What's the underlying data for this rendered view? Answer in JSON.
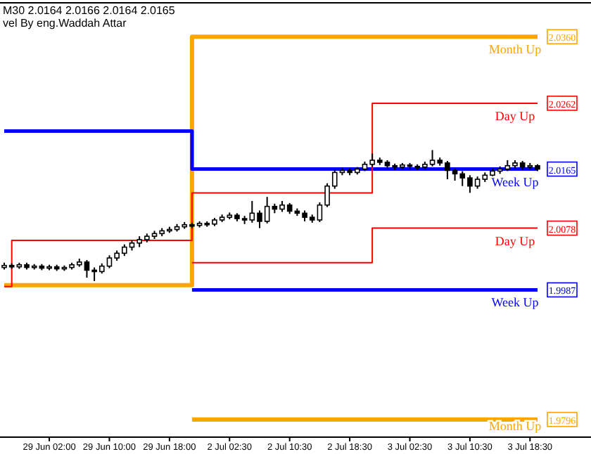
{
  "chart_data": {
    "type": "candlestick",
    "title": "M30  2.0164 2.0166 2.0164 2.0165",
    "subtitle": "vel By eng.Waddah Attar",
    "categories": [
      null,
      null,
      null,
      null,
      null,
      null,
      "29 Jun 02:00",
      null,
      null,
      null,
      null,
      null,
      null,
      null,
      "29 Jun 10:00",
      null,
      null,
      null,
      null,
      null,
      null,
      null,
      "29 Jun 18:00",
      null,
      null,
      null,
      null,
      null,
      null,
      null,
      "2 Jul 02:30",
      null,
      null,
      null,
      null,
      null,
      null,
      null,
      "2 Jul 10:30",
      null,
      null,
      null,
      null,
      null,
      null,
      null,
      "2 Jul 18:30",
      null,
      null,
      null,
      null,
      null,
      null,
      null,
      "3 Jul 02:30",
      null,
      null,
      null,
      null,
      null,
      null,
      null,
      "3 Jul 10:30",
      null,
      null,
      null,
      null,
      null,
      null,
      null,
      "3 Jul 18:30",
      null
    ],
    "ylim": [
      1.977,
      2.041
    ],
    "yticks": [
      {
        "value": 2.036,
        "label": "2.0360"
      },
      {
        "value": 2.0262,
        "label": "2.0262"
      },
      {
        "value": 2.0165,
        "label": "2.0165"
      },
      {
        "value": 2.0078,
        "label": "2.0078"
      },
      {
        "value": 1.9987,
        "label": "1.9987"
      },
      {
        "value": 1.9796,
        "label": "1.9796"
      }
    ],
    "ohlc": [
      [
        2.002,
        2.0027,
        2.0017,
        2.0023
      ],
      [
        2.0023,
        2.0026,
        2.0018,
        2.0021
      ],
      [
        2.0021,
        2.0027,
        2.0018,
        2.0024
      ],
      [
        2.0024,
        2.0027,
        2.0017,
        2.002
      ],
      [
        2.002,
        2.0025,
        2.0017,
        2.0022
      ],
      [
        2.0022,
        2.0025,
        2.0016,
        2.0019
      ],
      [
        2.0019,
        2.0024,
        2.0016,
        2.0021
      ],
      [
        2.0021,
        2.0024,
        2.0015,
        2.0018
      ],
      [
        2.0018,
        2.0023,
        2.0015,
        2.002
      ],
      [
        2.002,
        2.0027,
        2.0017,
        2.0024
      ],
      [
        2.0024,
        2.0033,
        2.0021,
        2.0028
      ],
      [
        2.0028,
        2.0031,
        2.0005,
        2.0016
      ],
      [
        2.0016,
        2.002,
        2.0,
        2.0014
      ],
      [
        2.0014,
        2.0026,
        2.0011,
        2.0022
      ],
      [
        2.0022,
        2.0038,
        2.0019,
        2.0034
      ],
      [
        2.0034,
        2.0045,
        2.003,
        2.0041
      ],
      [
        2.0041,
        2.0054,
        2.0037,
        2.005
      ],
      [
        2.005,
        2.006,
        2.0045,
        2.0056
      ],
      [
        2.0056,
        2.0066,
        2.005,
        2.0061
      ],
      [
        2.0061,
        2.007,
        2.0057,
        2.0066
      ],
      [
        2.0066,
        2.0074,
        2.0062,
        2.007
      ],
      [
        2.007,
        2.0078,
        2.0066,
        2.0074
      ],
      [
        2.0074,
        2.008,
        2.0071,
        2.0076
      ],
      [
        2.0076,
        2.0084,
        2.0073,
        2.008
      ],
      [
        2.008,
        2.0087,
        2.0077,
        2.0083
      ],
      [
        2.0083,
        2.0086,
        2.0078,
        2.0082
      ],
      [
        2.0082,
        2.0088,
        2.0079,
        2.0085
      ],
      [
        2.0085,
        2.0088,
        2.008,
        2.0084
      ],
      [
        2.0084,
        2.0093,
        2.0081,
        2.009
      ],
      [
        2.009,
        2.0098,
        2.0087,
        2.0094
      ],
      [
        2.0094,
        2.0101,
        2.0091,
        2.0097
      ],
      [
        2.0097,
        2.01,
        2.0088,
        2.0092
      ],
      [
        2.0092,
        2.0096,
        2.0084,
        2.009
      ],
      [
        2.009,
        2.0118,
        2.0086,
        2.01
      ],
      [
        2.01,
        2.0104,
        2.0078,
        2.0088
      ],
      [
        2.0088,
        2.0124,
        2.0085,
        2.011
      ],
      [
        2.011,
        2.0114,
        2.01,
        2.0106
      ],
      [
        2.0106,
        2.0118,
        2.0102,
        2.0112
      ],
      [
        2.0112,
        2.0115,
        2.0099,
        2.0103
      ],
      [
        2.0103,
        2.0107,
        2.0096,
        2.01
      ],
      [
        2.01,
        2.0104,
        2.0088,
        2.0094
      ],
      [
        2.0094,
        2.0098,
        2.0086,
        2.009
      ],
      [
        2.009,
        2.0116,
        2.0087,
        2.0112
      ],
      [
        2.0112,
        2.0144,
        2.0109,
        2.014
      ],
      [
        2.014,
        2.0164,
        2.0136,
        2.016
      ],
      [
        2.016,
        2.0167,
        2.0156,
        2.0163
      ],
      [
        2.0163,
        2.0166,
        2.0156,
        2.016
      ],
      [
        2.016,
        2.0168,
        2.0157,
        2.0165
      ],
      [
        2.0165,
        2.0176,
        2.0162,
        2.0172
      ],
      [
        2.0172,
        2.0188,
        2.0168,
        2.0178
      ],
      [
        2.0178,
        2.0182,
        2.0171,
        2.0175
      ],
      [
        2.0175,
        2.0178,
        2.0166,
        2.017
      ],
      [
        2.017,
        2.0173,
        2.0164,
        2.0168
      ],
      [
        2.0168,
        2.0174,
        2.0165,
        2.0171
      ],
      [
        2.0171,
        2.0174,
        2.0165,
        2.0169
      ],
      [
        2.0169,
        2.0172,
        2.0164,
        2.0168
      ],
      [
        2.0168,
        2.0176,
        2.0165,
        2.0172
      ],
      [
        2.0172,
        2.0193,
        2.0169,
        2.0178
      ],
      [
        2.0178,
        2.0182,
        2.017,
        2.0174
      ],
      [
        2.0174,
        2.0177,
        2.015,
        2.0163
      ],
      [
        2.0163,
        2.0166,
        2.0148,
        2.0158
      ],
      [
        2.0158,
        2.0162,
        2.014,
        2.0152
      ],
      [
        2.0152,
        2.0156,
        2.013,
        2.014
      ],
      [
        2.014,
        2.0154,
        2.0136,
        2.015
      ],
      [
        2.015,
        2.016,
        2.0146,
        2.0156
      ],
      [
        2.0156,
        2.0166,
        2.0152,
        2.0162
      ],
      [
        2.0162,
        2.0169,
        2.0158,
        2.0165
      ],
      [
        2.0165,
        2.0178,
        2.0162,
        2.017
      ],
      [
        2.017,
        2.0178,
        2.0166,
        2.0174
      ],
      [
        2.0174,
        2.0177,
        2.0164,
        2.0168
      ],
      [
        2.0168,
        2.0174,
        2.0165,
        2.017
      ],
      [
        2.017,
        2.0172,
        2.0162,
        2.0165
      ]
    ],
    "series": [
      {
        "type": "step",
        "name": "Month Up",
        "color": "#ffa500",
        "values": [
          1.9994,
          1.9994,
          1.9994,
          1.9994,
          1.9994,
          1.9994,
          1.9994,
          1.9994,
          1.9994,
          1.9994,
          1.9994,
          1.9994,
          1.9994,
          1.9994,
          1.9994,
          1.9994,
          1.9994,
          1.9994,
          1.9994,
          1.9994,
          1.9994,
          1.9994,
          1.9994,
          1.9994,
          1.9994,
          2.036,
          2.036,
          2.036,
          2.036,
          2.036,
          2.036,
          2.036,
          2.036,
          2.036,
          2.036,
          2.036,
          2.036,
          2.036,
          2.036,
          2.036,
          2.036,
          2.036,
          2.036,
          2.036,
          2.036,
          2.036,
          2.036,
          2.036,
          2.036,
          2.036,
          2.036,
          2.036,
          2.036,
          2.036,
          2.036,
          2.036,
          2.036,
          2.036,
          2.036,
          2.036,
          2.036,
          2.036,
          2.036,
          2.036,
          2.036,
          2.036,
          2.036,
          2.036,
          2.036,
          2.036,
          2.036,
          2.036
        ]
      },
      {
        "type": "step",
        "name": "Month Up",
        "color": "#ffa500",
        "values": [
          null,
          null,
          null,
          null,
          null,
          null,
          null,
          null,
          null,
          null,
          null,
          null,
          null,
          null,
          null,
          null,
          null,
          null,
          null,
          null,
          null,
          null,
          null,
          null,
          null,
          1.9796,
          1.9796,
          1.9796,
          1.9796,
          1.9796,
          1.9796,
          1.9796,
          1.9796,
          1.9796,
          1.9796,
          1.9796,
          1.9796,
          1.9796,
          1.9796,
          1.9796,
          1.9796,
          1.9796,
          1.9796,
          1.9796,
          1.9796,
          1.9796,
          1.9796,
          1.9796,
          1.9796,
          1.9796,
          1.9796,
          1.9796,
          1.9796,
          1.9796,
          1.9796,
          1.9796,
          1.9796,
          1.9796,
          1.9796,
          1.9796,
          1.9796,
          1.9796,
          1.9796,
          1.9796,
          1.9796,
          1.9796,
          1.9796,
          1.9796,
          1.9796,
          1.9796,
          1.9796,
          1.9796
        ]
      },
      {
        "type": "step",
        "name": "Week Up",
        "color": "#0000ff",
        "values": [
          2.0221,
          2.0221,
          2.0221,
          2.0221,
          2.0221,
          2.0221,
          2.0221,
          2.0221,
          2.0221,
          2.0221,
          2.0221,
          2.0221,
          2.0221,
          2.0221,
          2.0221,
          2.0221,
          2.0221,
          2.0221,
          2.0221,
          2.0221,
          2.0221,
          2.0221,
          2.0221,
          2.0221,
          2.0221,
          2.0165,
          2.0165,
          2.0165,
          2.0165,
          2.0165,
          2.0165,
          2.0165,
          2.0165,
          2.0165,
          2.0165,
          2.0165,
          2.0165,
          2.0165,
          2.0165,
          2.0165,
          2.0165,
          2.0165,
          2.0165,
          2.0165,
          2.0165,
          2.0165,
          2.0165,
          2.0165,
          2.0165,
          2.0165,
          2.0165,
          2.0165,
          2.0165,
          2.0165,
          2.0165,
          2.0165,
          2.0165,
          2.0165,
          2.0165,
          2.0165,
          2.0165,
          2.0165,
          2.0165,
          2.0165,
          2.0165,
          2.0165,
          2.0165,
          2.0165,
          2.0165,
          2.0165,
          2.0165,
          2.0165
        ]
      },
      {
        "type": "step",
        "name": "Week Up",
        "color": "#0000ff",
        "values": [
          null,
          null,
          null,
          null,
          null,
          null,
          null,
          null,
          null,
          null,
          null,
          null,
          null,
          null,
          null,
          null,
          null,
          null,
          null,
          null,
          null,
          null,
          null,
          null,
          null,
          1.9987,
          1.9987,
          1.9987,
          1.9987,
          1.9987,
          1.9987,
          1.9987,
          1.9987,
          1.9987,
          1.9987,
          1.9987,
          1.9987,
          1.9987,
          1.9987,
          1.9987,
          1.9987,
          1.9987,
          1.9987,
          1.9987,
          1.9987,
          1.9987,
          1.9987,
          1.9987,
          1.9987,
          1.9987,
          1.9987,
          1.9987,
          1.9987,
          1.9987,
          1.9987,
          1.9987,
          1.9987,
          1.9987,
          1.9987,
          1.9987,
          1.9987,
          1.9987,
          1.9987,
          1.9987,
          1.9987,
          1.9987,
          1.9987,
          1.9987,
          1.9987,
          1.9987,
          1.9987,
          1.9987
        ]
      },
      {
        "type": "step",
        "name": "Day Up",
        "color": "#ff0000",
        "values": [
          1.9992,
          2.006,
          2.006,
          2.006,
          2.006,
          2.006,
          2.006,
          2.006,
          2.006,
          2.006,
          2.006,
          2.006,
          2.006,
          2.006,
          2.006,
          2.006,
          2.006,
          2.006,
          2.006,
          2.006,
          2.006,
          2.006,
          2.006,
          2.006,
          2.006,
          2.013,
          2.013,
          2.013,
          2.013,
          2.013,
          2.013,
          2.013,
          2.013,
          2.013,
          2.013,
          2.013,
          2.013,
          2.013,
          2.013,
          2.013,
          2.013,
          2.013,
          2.013,
          2.013,
          2.013,
          2.013,
          2.013,
          2.013,
          2.013,
          2.0262,
          2.0262,
          2.0262,
          2.0262,
          2.0262,
          2.0262,
          2.0262,
          2.0262,
          2.0262,
          2.0262,
          2.0262,
          2.0262,
          2.0262,
          2.0262,
          2.0262,
          2.0262,
          2.0262,
          2.0262,
          2.0262,
          2.0262,
          2.0262,
          2.0262,
          2.0262
        ]
      },
      {
        "type": "step",
        "name": "Day Up",
        "color": "#ff0000",
        "values": [
          null,
          null,
          null,
          null,
          null,
          null,
          null,
          null,
          null,
          null,
          null,
          null,
          null,
          null,
          null,
          null,
          null,
          null,
          null,
          null,
          null,
          null,
          null,
          null,
          null,
          2.0027,
          2.0027,
          2.0027,
          2.0027,
          2.0027,
          2.0027,
          2.0027,
          2.0027,
          2.0027,
          2.0027,
          2.0027,
          2.0027,
          2.0027,
          2.0027,
          2.0027,
          2.0027,
          2.0027,
          2.0027,
          2.0027,
          2.0027,
          2.0027,
          2.0027,
          2.0027,
          2.0027,
          2.0078,
          2.0078,
          2.0078,
          2.0078,
          2.0078,
          2.0078,
          2.0078,
          2.0078,
          2.0078,
          2.0078,
          2.0078,
          2.0078,
          2.0078,
          2.0078,
          2.0078,
          2.0078,
          2.0078,
          2.0078,
          2.0078,
          2.0078,
          2.0078,
          2.0078,
          2.0078
        ]
      }
    ]
  }
}
